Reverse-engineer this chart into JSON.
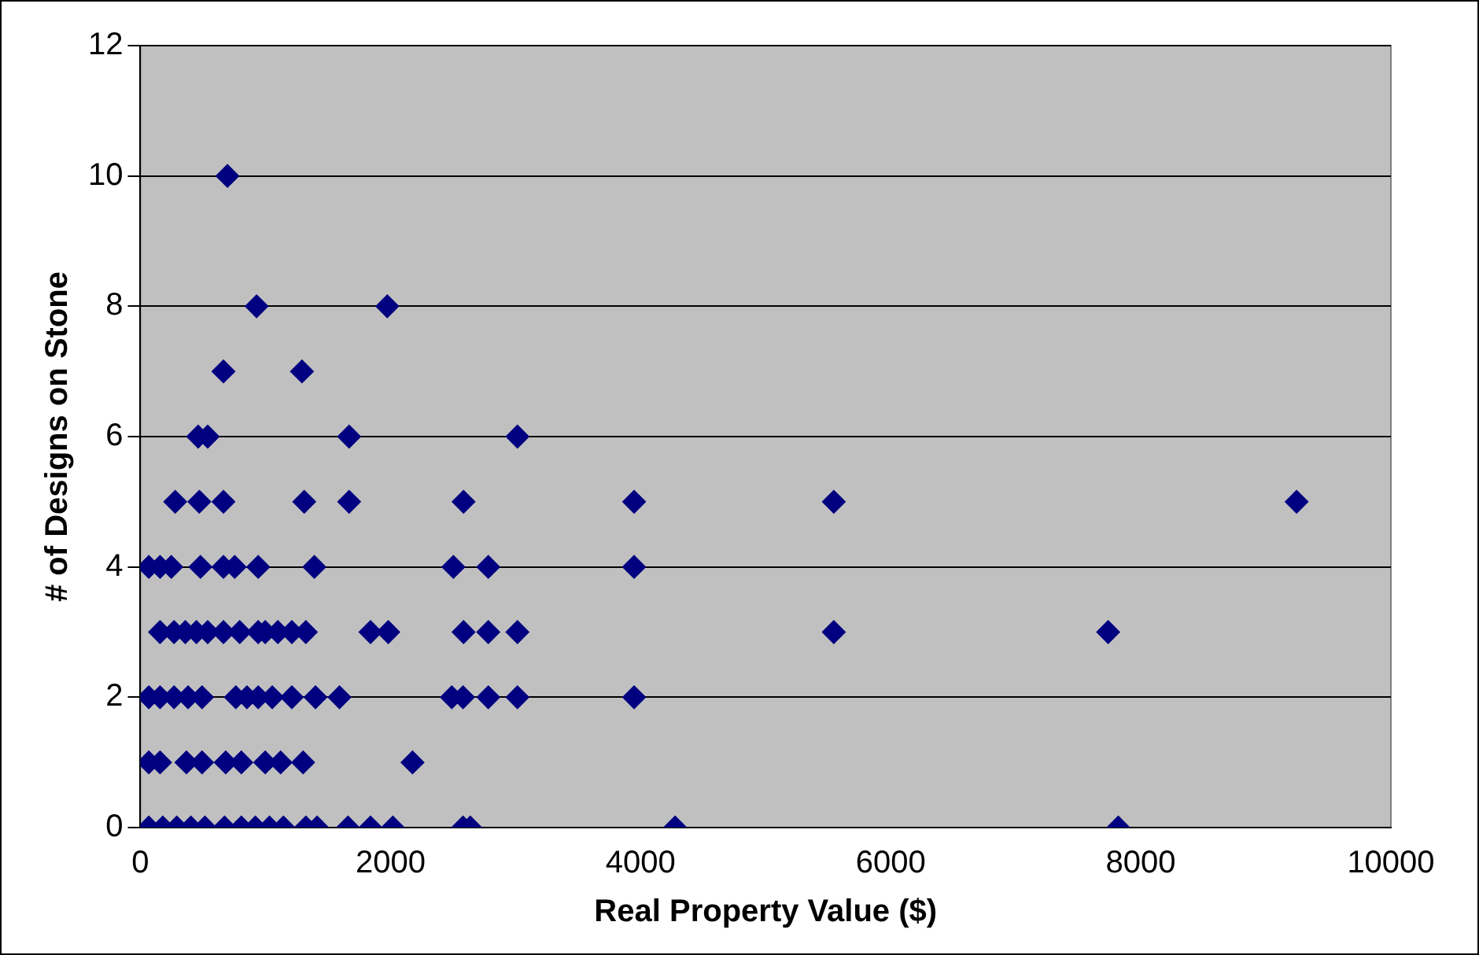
{
  "chart_data": {
    "type": "scatter",
    "xlabel": "Real Property Value ($)",
    "ylabel": "# of Designs on Stone",
    "x": [
      696,
      929,
      1974,
      664,
      1292,
      462,
      538,
      1669,
      3015,
      278,
      471,
      664,
      1310,
      1669,
      2584,
      3948,
      5545,
      9246,
      67,
      157,
      247,
      480,
      664,
      754,
      942,
      1391,
      2503,
      2782,
      3948,
      157,
      269,
      359,
      448,
      538,
      664,
      794,
      942,
      998,
      1099,
      1211,
      1323,
      1840,
      1982,
      2584,
      2782,
      3015,
      5545,
      7739,
      67,
      157,
      269,
      381,
      493,
      763,
      852,
      942,
      1054,
      1211,
      1400,
      1592,
      2490,
      2580,
      2782,
      3015,
      3948,
      67,
      157,
      368,
      493,
      682,
      807,
      998,
      1121,
      1301,
      2176,
      67,
      179,
      291,
      404,
      516,
      673,
      807,
      919,
      1032,
      1144,
      1323,
      1413,
      1660,
      1840,
      2019,
      2580,
      2638,
      4276,
      7820
    ],
    "values": [
      10,
      8,
      8,
      7,
      7,
      6,
      6,
      6,
      6,
      5,
      5,
      5,
      5,
      5,
      5,
      5,
      5,
      5,
      4,
      4,
      4,
      4,
      4,
      4,
      4,
      4,
      4,
      4,
      4,
      3,
      3,
      3,
      3,
      3,
      3,
      3,
      3,
      3,
      3,
      3,
      3,
      3,
      3,
      3,
      3,
      3,
      3,
      3,
      2,
      2,
      2,
      2,
      2,
      2,
      2,
      2,
      2,
      2,
      2,
      2,
      2,
      2,
      2,
      2,
      2,
      1,
      1,
      1,
      1,
      1,
      1,
      1,
      1,
      1,
      1,
      0,
      0,
      0,
      0,
      0,
      0,
      0,
      0,
      0,
      0,
      0,
      0,
      0,
      0,
      0,
      0,
      0,
      0,
      0
    ],
    "color": "#000080",
    "marker": "diamond",
    "xlim": [
      0,
      10000
    ],
    "xticks": [
      0,
      2000,
      4000,
      6000,
      8000,
      10000
    ],
    "ylim": [
      0,
      12
    ],
    "yticks": [
      0,
      2,
      4,
      6,
      8,
      10,
      12
    ],
    "grid": "y",
    "legend": false
  }
}
